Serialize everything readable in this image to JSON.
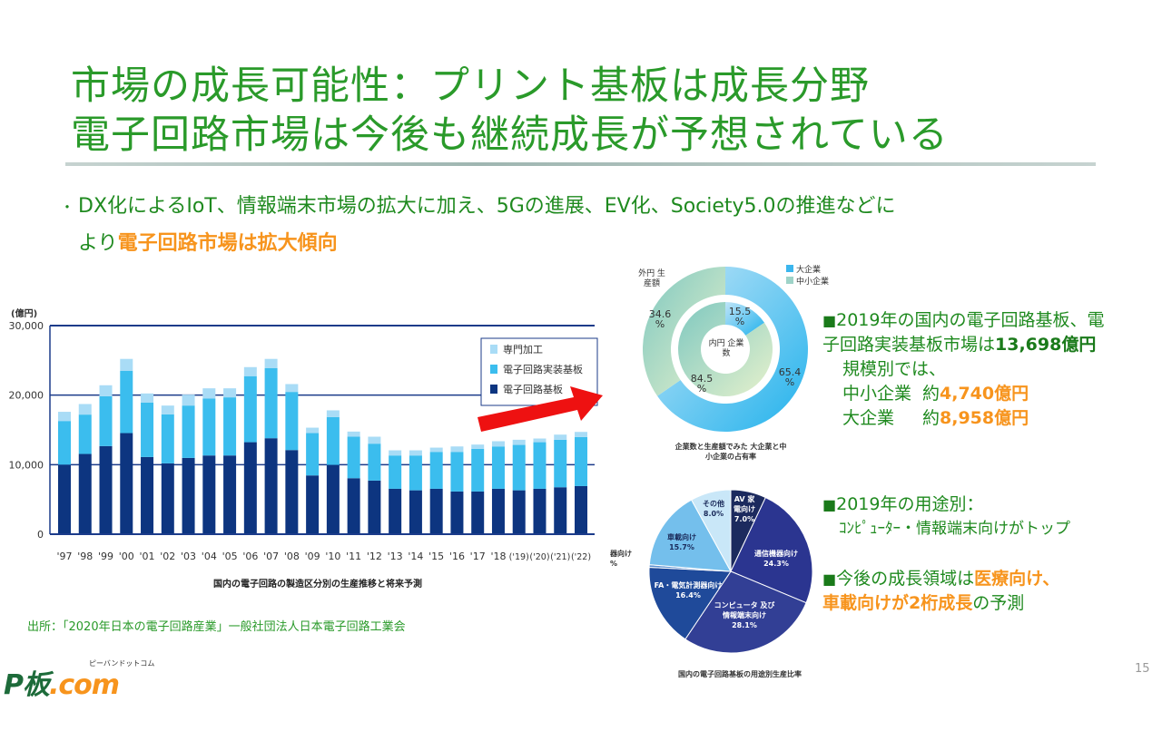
{
  "header": {
    "title_line1": "市場の成長可能性：プリント基板は成長分野",
    "title_line2": "電子回路市場は今後も継続成長が予想されている"
  },
  "bullet": {
    "marker": "・",
    "text_line1": "DX化によるIoT、情報端末市場の拡大に加え、5Gの進展、EV化、Society5.0の推進などに",
    "text_line2_prefix": "より",
    "text_line2_highlight": "電子回路市場は拡大傾向"
  },
  "right_notes": {
    "note1_marker": "■",
    "note1_line1": "2019年の国内の電子回路基板、電",
    "note1_line2_prefix": "子回路実装基板市場は",
    "note1_line2_value": "13,698億円",
    "note1_line3": "規模別では、",
    "sme_label": "中小企業",
    "sme_prefix": "約",
    "sme_value": "4,740億円",
    "large_label": "大企業",
    "large_prefix": "約",
    "large_value": "8,958億円",
    "note2_marker": "■",
    "note2_line1": "2019年の用途別：",
    "note2_line2": "ｺﾝﾋﾟｭｰﾀｰ・情報端末向けがトップ",
    "note3_marker": "■",
    "note3_prefix": "今後の成長領域は",
    "note3_highlight1": "医療向け、",
    "note3_highlight2": "車載向けが2桁成長",
    "note3_suffix": "の予測"
  },
  "source": "出所：「2020年日本の電子回路産業」一般社団法人日本電子回路工業会",
  "logo": {
    "main_p": "P板",
    "main_c": ".com",
    "sub": "ピーバンドットコム"
  },
  "page_number": "15",
  "colors": {
    "title": "#2a9a2a",
    "accent_orange": "#f7941d",
    "arrow": "#ee1111"
  },
  "chart_data": [
    {
      "type": "bar",
      "stacked": true,
      "title": "国内の電子回路の製造区分別の生産推移と将来予測",
      "ylabel": "(億円)",
      "ylim": [
        0,
        30000
      ],
      "yticks": [
        "0",
        "10,000",
        "20,000",
        "30,000"
      ],
      "categories": [
        "'97",
        "'98",
        "'99",
        "'00",
        "'01",
        "'02",
        "'03",
        "'04",
        "'05",
        "'06",
        "'07",
        "'08",
        "'09",
        "'10",
        "'11",
        "'12",
        "'13",
        "'14",
        "'15",
        "'16",
        "'17",
        "'18",
        "('19)",
        "('20)",
        "('21)",
        "('22)"
      ],
      "legend_position": "top-right",
      "series": [
        {
          "name": "電子回路基板",
          "color": "#0d3580",
          "values": [
            10000,
            11540,
            12670,
            14540,
            11100,
            10190,
            10970,
            11320,
            11320,
            13230,
            13800,
            12100,
            8450,
            9970,
            8050,
            7710,
            6530,
            6310,
            6530,
            6140,
            6140,
            6530,
            6310,
            6530,
            6750,
            6920
          ]
        },
        {
          "name": "電子回路実装基板",
          "color": "#3bbdee",
          "values": [
            6280,
            5660,
            7180,
            8970,
            7840,
            7050,
            7530,
            8180,
            8360,
            9500,
            10100,
            8360,
            6090,
            6880,
            5970,
            5310,
            4790,
            5010,
            5310,
            5700,
            6140,
            6090,
            6530,
            6700,
            6830,
            7060
          ]
        },
        {
          "name": "専門加工",
          "color": "#a9dcf6",
          "values": [
            1320,
            1520,
            1570,
            1700,
            1300,
            1260,
            1570,
            1480,
            1300,
            1300,
            1310,
            1130,
            780,
            960,
            740,
            1000,
            740,
            740,
            610,
            780,
            610,
            750,
            740,
            530,
            740,
            730
          ]
        }
      ]
    },
    {
      "type": "pie",
      "subtype": "double-donut",
      "title": "企業数と生産額でみた 大企業と中小企業の占有率",
      "legend": [
        "大企業",
        "中小企業"
      ],
      "legend_position": "top-right",
      "outer_label": "外円 生産額",
      "inner_label": "内円 企業数",
      "outer": [
        {
          "name": "大企業",
          "value": 65.4,
          "label": "65.4 %"
        },
        {
          "name": "中小企業",
          "value": 34.6,
          "label": "34.6 %"
        }
      ],
      "inner": [
        {
          "name": "大企業",
          "value": 15.5,
          "label": "15.5 %"
        },
        {
          "name": "中小企業",
          "value": 84.5,
          "label": "84.5 %"
        }
      ]
    },
    {
      "type": "pie",
      "title": "国内の電子回路基板の用途別生産比率",
      "slices": [
        {
          "name": "AV 家電向け",
          "value": 7.0,
          "label": "7.0%",
          "color": "#1c2a5e"
        },
        {
          "name": "通信機器向け",
          "value": 24.3,
          "label": "24.3%",
          "color": "#2b3590"
        },
        {
          "name": "コンピュータ 及び 情報端末向け",
          "value": 28.1,
          "label": "28.1%",
          "color": "#323f95"
        },
        {
          "name": "FA・電気計測器向け",
          "value": 16.4,
          "label": "16.4%",
          "color": "#1f4a9a"
        },
        {
          "name": "器向け",
          "value": 0.5,
          "label": "%",
          "color": "#5a8fd0"
        },
        {
          "name": "車載向け",
          "value": 15.7,
          "label": "15.7%",
          "color": "#74bfec"
        },
        {
          "name": "その他",
          "value": 8.0,
          "label": "8.0%",
          "color": "#c9e7f8"
        }
      ]
    }
  ]
}
